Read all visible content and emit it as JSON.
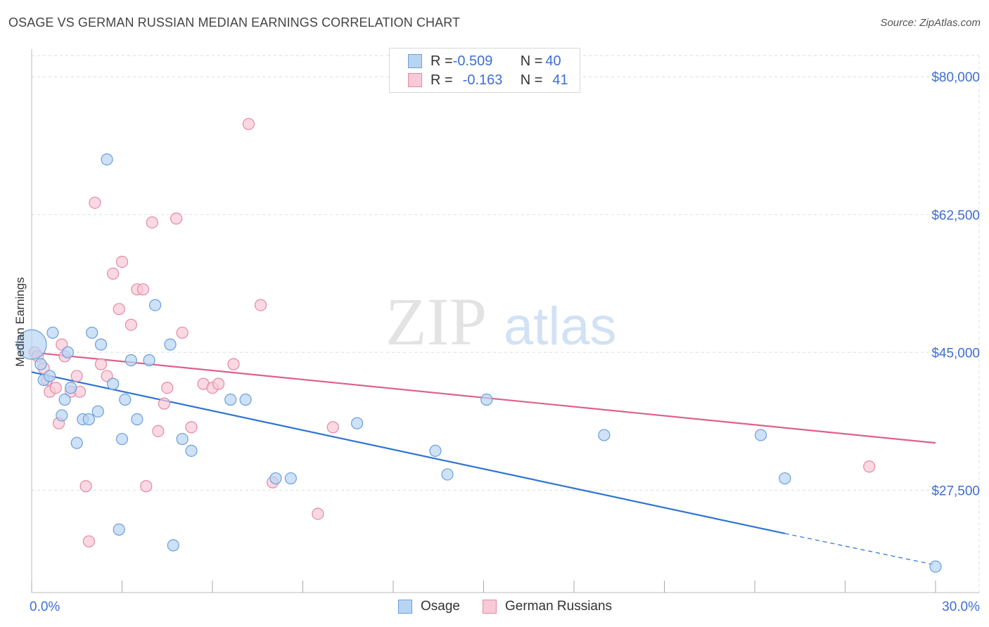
{
  "title": "OSAGE VS GERMAN RUSSIAN MEDIAN EARNINGS CORRELATION CHART",
  "source": "Source: ZipAtlas.com",
  "watermark": {
    "zip": "ZIP",
    "atlas": "atlas"
  },
  "legend": {
    "r_label": "R = ",
    "n_label": "N = ",
    "series": [
      {
        "r": "-0.509",
        "n": "40"
      },
      {
        "r": "-0.163",
        "n": "41"
      }
    ]
  },
  "bottom_legend": [
    "Osage",
    "German Russians"
  ],
  "colors": {
    "osage_fill": "#b8d4f3",
    "osage_stroke": "#6a9fdc",
    "osage_line": "#2f74d0",
    "gr_fill": "#f8c9d7",
    "gr_stroke": "#e589a6",
    "gr_line": "#e0608b",
    "axis_text": "#3f6fd1",
    "grid": "#dddddd"
  },
  "chart_data": {
    "type": "scatter",
    "title": "OSAGE VS GERMAN RUSSIAN MEDIAN EARNINGS CORRELATION CHART",
    "xlabel": "",
    "ylabel": "Median Earnings",
    "xlim": [
      0,
      30
    ],
    "ylim": [
      14500,
      83500
    ],
    "x_tick_labels": [
      "0.0%",
      "30.0%"
    ],
    "y_ticks": [
      27500,
      45000,
      62500,
      80000
    ],
    "y_tick_labels": [
      "$27,500",
      "$45,000",
      "$62,500",
      "$80,000"
    ],
    "series": [
      {
        "name": "Osage",
        "points": [
          [
            0.0,
            46000
          ],
          [
            0.3,
            43500
          ],
          [
            0.4,
            41500
          ],
          [
            0.6,
            42000
          ],
          [
            0.7,
            47500
          ],
          [
            1.0,
            37000
          ],
          [
            1.1,
            39000
          ],
          [
            1.2,
            45000
          ],
          [
            1.3,
            40500
          ],
          [
            1.5,
            33500
          ],
          [
            1.7,
            36500
          ],
          [
            1.9,
            36500
          ],
          [
            2.0,
            47500
          ],
          [
            2.2,
            37500
          ],
          [
            2.3,
            46000
          ],
          [
            2.5,
            69500
          ],
          [
            2.7,
            41000
          ],
          [
            2.9,
            22500
          ],
          [
            3.0,
            34000
          ],
          [
            3.1,
            39000
          ],
          [
            3.3,
            44000
          ],
          [
            3.5,
            36500
          ],
          [
            3.9,
            44000
          ],
          [
            4.1,
            51000
          ],
          [
            4.6,
            46000
          ],
          [
            4.7,
            20500
          ],
          [
            5.0,
            34000
          ],
          [
            5.3,
            32500
          ],
          [
            6.6,
            39000
          ],
          [
            7.1,
            39000
          ],
          [
            8.1,
            29000
          ],
          [
            8.6,
            29000
          ],
          [
            10.8,
            36000
          ],
          [
            13.4,
            32500
          ],
          [
            13.8,
            29500
          ],
          [
            15.1,
            39000
          ],
          [
            19.0,
            34500
          ],
          [
            24.2,
            34500
          ],
          [
            25.0,
            29000
          ],
          [
            30.0,
            17800
          ]
        ]
      },
      {
        "name": "German Russians",
        "points": [
          [
            0.1,
            45000
          ],
          [
            0.2,
            44500
          ],
          [
            0.4,
            43000
          ],
          [
            0.5,
            41500
          ],
          [
            0.6,
            40000
          ],
          [
            0.8,
            40500
          ],
          [
            0.9,
            36000
          ],
          [
            1.0,
            46000
          ],
          [
            1.1,
            44500
          ],
          [
            1.3,
            40000
          ],
          [
            1.5,
            42000
          ],
          [
            1.6,
            40000
          ],
          [
            1.8,
            28000
          ],
          [
            1.9,
            21000
          ],
          [
            2.1,
            64000
          ],
          [
            2.3,
            43500
          ],
          [
            2.5,
            42000
          ],
          [
            2.7,
            55000
          ],
          [
            2.9,
            50500
          ],
          [
            3.0,
            56500
          ],
          [
            3.3,
            48500
          ],
          [
            3.5,
            53000
          ],
          [
            3.7,
            53000
          ],
          [
            3.8,
            28000
          ],
          [
            4.0,
            61500
          ],
          [
            4.2,
            35000
          ],
          [
            4.4,
            38500
          ],
          [
            4.5,
            40500
          ],
          [
            4.8,
            62000
          ],
          [
            5.0,
            47500
          ],
          [
            5.3,
            35500
          ],
          [
            5.7,
            41000
          ],
          [
            6.0,
            40500
          ],
          [
            6.2,
            41000
          ],
          [
            6.7,
            43500
          ],
          [
            7.2,
            74000
          ],
          [
            7.6,
            51000
          ],
          [
            8.0,
            28500
          ],
          [
            9.5,
            24500
          ],
          [
            10.0,
            35500
          ],
          [
            27.8,
            30500
          ]
        ]
      }
    ],
    "trend_lines": [
      {
        "name": "Osage",
        "x0": 0,
        "y0": 42500,
        "x1": 25,
        "y1": 22000,
        "dashed_to_x": 30,
        "dashed_to_y": 18000
      },
      {
        "name": "German Russians",
        "x0": 0,
        "y0": 45000,
        "x1": 30,
        "y1": 33500
      }
    ]
  }
}
